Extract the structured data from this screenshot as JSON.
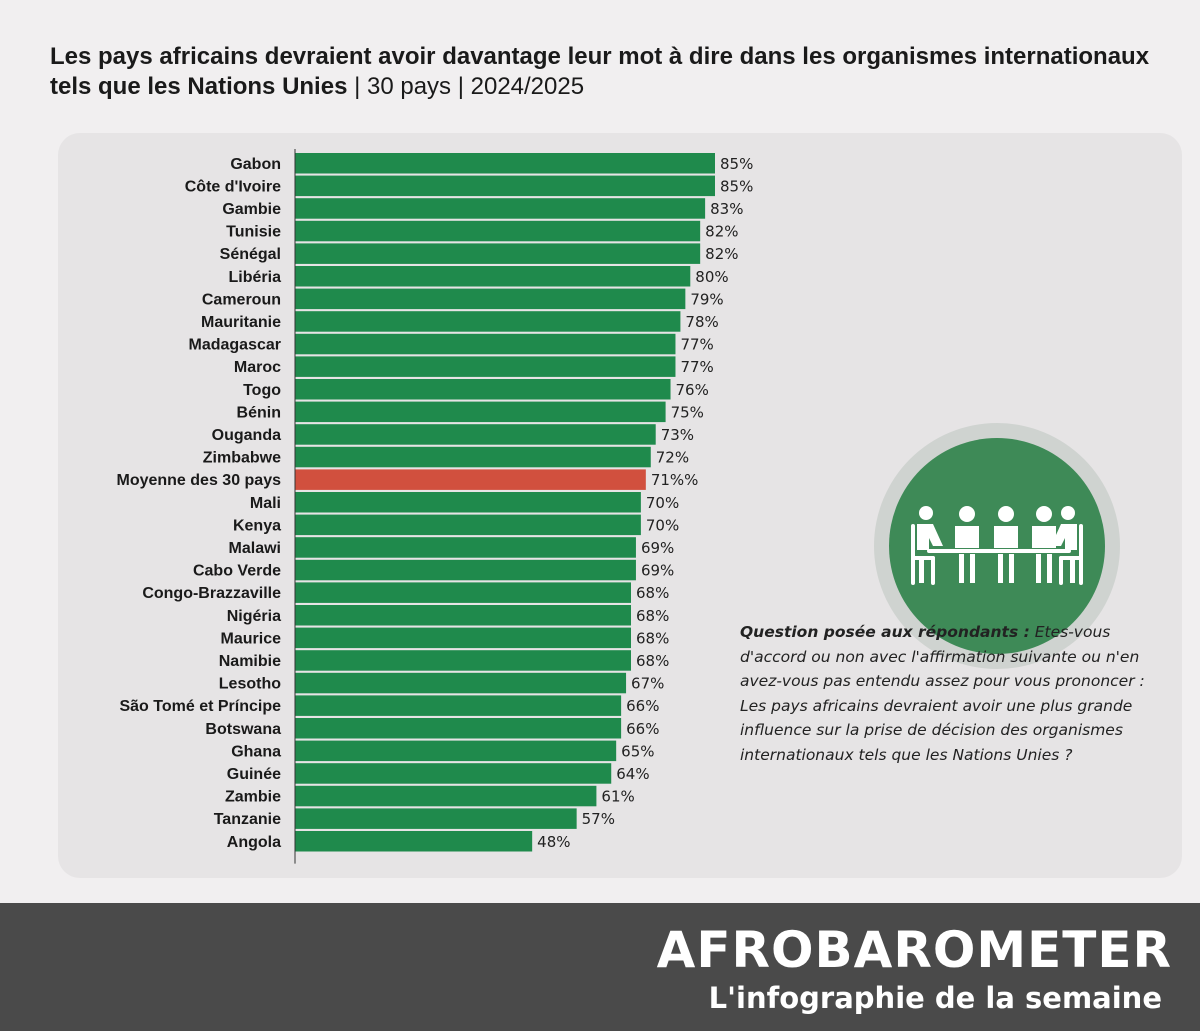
{
  "header": {
    "title": "Les pays africains devraient avoir davantage leur mot à dire dans les organismes internationaux tels que les Nations Unies",
    "subtitle": " | 30 pays | 2024/2025"
  },
  "question": {
    "label": "Question posée aux répondants :",
    "text": "Etes-vous d'accord ou non avec l'affirmation suivante ou n'en avez-vous pas entendu assez pour vous prononcer : Les pays africains devraient avoir une plus grande influence sur la prise de décision des organismes internationaux tels que les Nations Unies ?"
  },
  "footer": {
    "brand": "AFROBAROMETER",
    "tagline": "L'infographie de la semaine"
  },
  "icons": {
    "illustration": "meeting-table-icon"
  },
  "colors": {
    "bar": "#1f8a4c",
    "average_bar": "#d1503e",
    "icon_circle": "#3e8a57"
  },
  "chart_data": {
    "type": "bar",
    "orientation": "horizontal",
    "categories": [
      "Gabon",
      "Côte d'Ivoire",
      "Gambie",
      "Tunisie",
      "Sénégal",
      "Libéria",
      "Cameroun",
      "Mauritanie",
      "Madagascar",
      "Maroc",
      "Togo",
      "Bénin",
      "Ouganda",
      "Zimbabwe",
      "Moyenne des 30 pays",
      "Mali",
      "Kenya",
      "Malawi",
      "Cabo Verde",
      "Congo-Brazzaville",
      "Nigéria",
      "Maurice",
      "Namibie",
      "Lesotho",
      "São Tomé et Príncipe",
      "Botswana",
      "Ghana",
      "Guinée",
      "Zambie",
      "Tanzanie",
      "Angola"
    ],
    "values": [
      85,
      85,
      83,
      82,
      82,
      80,
      79,
      78,
      77,
      77,
      76,
      75,
      73,
      72,
      71,
      70,
      70,
      69,
      69,
      68,
      68,
      68,
      68,
      67,
      66,
      66,
      65,
      64,
      61,
      57,
      48
    ],
    "value_labels": [
      "85%",
      "85%",
      "83%",
      "82%",
      "82%",
      "80%",
      "79%",
      "78%",
      "77%",
      "77%",
      "76%",
      "75%",
      "73%",
      "72%",
      "71%%",
      "70%",
      "70%",
      "69%",
      "69%",
      "68%",
      "68%",
      "68%",
      "68%",
      "67%",
      "66%",
      "66%",
      "65%",
      "64%",
      "61%",
      "57%",
      "48%"
    ],
    "highlight_category": "Moyenne des 30 pays",
    "xlim": [
      0,
      85
    ],
    "grid": false,
    "legend": "none"
  }
}
